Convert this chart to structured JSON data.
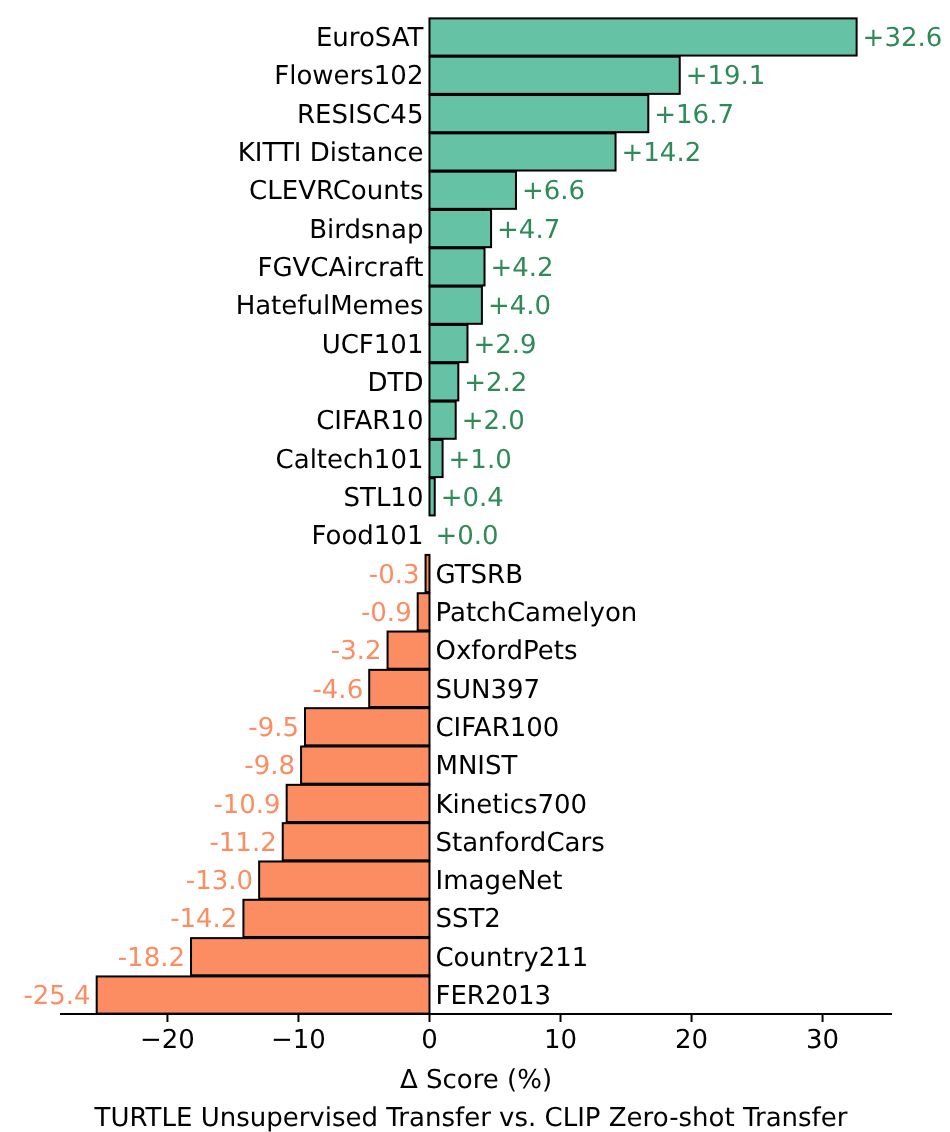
{
  "chart_data": {
    "type": "bar",
    "orientation": "horizontal",
    "title": "TURTLE Unsupervised Transfer vs. CLIP Zero-shot Transfer",
    "xlabel": "Δ Score (%)",
    "categories": [
      "EuroSAT",
      "Flowers102",
      "RESISC45",
      "KITTI Distance",
      "CLEVRCounts",
      "Birdsnap",
      "FGVCAircraft",
      "HatefulMemes",
      "UCF101",
      "DTD",
      "CIFAR10",
      "Caltech101",
      "STL10",
      "Food101",
      "GTSRB",
      "PatchCamelyon",
      "OxfordPets",
      "SUN397",
      "CIFAR100",
      "MNIST",
      "Kinetics700",
      "StanfordCars",
      "ImageNet",
      "SST2",
      "Country211",
      "FER2013"
    ],
    "values": [
      32.6,
      19.1,
      16.7,
      14.2,
      6.6,
      4.7,
      4.2,
      4.0,
      2.9,
      2.2,
      2.0,
      1.0,
      0.4,
      0.0,
      -0.3,
      -0.9,
      -3.2,
      -4.6,
      -9.5,
      -9.8,
      -10.9,
      -11.2,
      -13.0,
      -14.2,
      -18.2,
      -25.4
    ],
    "value_labels": [
      "+32.6",
      "+19.1",
      "+16.7",
      "+14.2",
      "+6.6",
      "+4.7",
      "+4.2",
      "+4.0",
      "+2.9",
      "+2.2",
      "+2.0",
      "+1.0",
      "+0.4",
      "+0.0",
      "-0.3",
      "-0.9",
      "-3.2",
      "-4.6",
      "-9.5",
      "-9.8",
      "-10.9",
      "-11.2",
      "-13.0",
      "-14.2",
      "-18.2",
      "-25.4"
    ],
    "colors": [
      "#66c2a5",
      "#66c2a5",
      "#66c2a5",
      "#66c2a5",
      "#66c2a5",
      "#66c2a5",
      "#66c2a5",
      "#66c2a5",
      "#66c2a5",
      "#66c2a5",
      "#66c2a5",
      "#66c2a5",
      "#66c2a5",
      "#66c2a5",
      "#fc8d62",
      "#fc8d62",
      "#fc8d62",
      "#fc8d62",
      "#fc8d62",
      "#fc8d62",
      "#fc8d62",
      "#fc8d62",
      "#fc8d62",
      "#fc8d62",
      "#fc8d62",
      "#fc8d62"
    ],
    "xlim": [
      -28.2,
      35.3
    ],
    "xticks": [
      {
        "value": -20,
        "label": "−20"
      },
      {
        "value": -10,
        "label": "−10"
      },
      0,
      10,
      20,
      30
    ],
    "grid": false
  }
}
